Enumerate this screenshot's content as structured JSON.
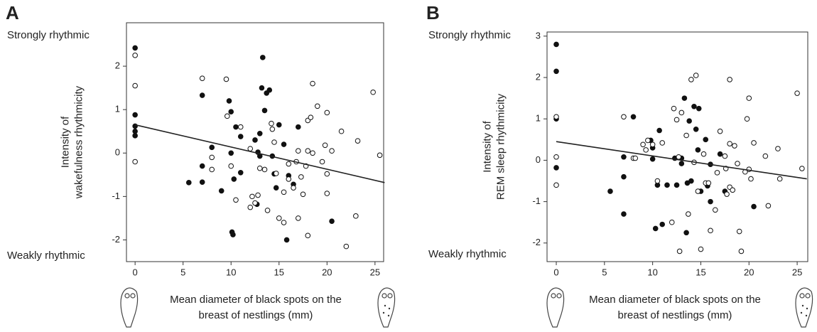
{
  "chart_data": [
    {
      "type": "scatter",
      "panel_label": "A",
      "annotations": [
        "Strongly rhythmic",
        "Weakly rhythmic"
      ],
      "ylabel": [
        "Intensity of",
        "wakefulness rhythmicity"
      ],
      "xlabel": [
        "Mean diameter of black spots on the",
        "breast of nestlings (mm)"
      ],
      "xlim": [
        -0.9,
        25.9
      ],
      "xticks": [
        0,
        5,
        10,
        15,
        20,
        25
      ],
      "ylim": [
        -2.5,
        3.0
      ],
      "yticks": [
        -2,
        -1,
        0,
        1,
        2
      ],
      "series": [
        {
          "marker": "filled",
          "color": "#111111",
          "x": [
            0,
            0,
            0,
            0,
            0,
            5.6,
            7,
            7,
            7,
            8,
            9,
            9.8,
            10,
            10,
            10.1,
            10.2,
            10.3,
            10.5,
            11,
            11,
            12.5,
            12.7,
            13,
            13.2,
            13.3,
            13.5,
            13.7,
            14,
            14.3,
            14.5,
            14.7,
            15,
            15.8,
            16,
            16.5,
            17,
            15.5,
            20.5,
            13,
            12.8
          ],
          "values": [
            2.42,
            0.88,
            0.62,
            0.5,
            0.4,
            -0.68,
            1.33,
            -0.3,
            -0.67,
            0.13,
            -0.87,
            1.2,
            0.95,
            0,
            -1.82,
            -1.88,
            -0.6,
            0.6,
            0.38,
            -0.45,
            0.3,
            -1.18,
            -0.07,
            1.5,
            2.2,
            0.98,
            1.38,
            1.45,
            -0.07,
            -0.48,
            -0.8,
            0.65,
            -2.0,
            -0.52,
            -0.72,
            0.6,
            0.2,
            -1.57,
            0.45,
            0.02
          ]
        },
        {
          "marker": "open",
          "color": "#111111",
          "x": [
            0,
            0,
            0,
            7,
            8,
            8,
            9.5,
            9.6,
            10,
            10.5,
            11,
            12,
            12,
            12.2,
            12.5,
            12.8,
            13,
            13.5,
            13.8,
            14.2,
            14.3,
            14.5,
            14.7,
            15,
            15.5,
            15.5,
            16,
            16,
            16.5,
            17,
            17,
            17.5,
            17.8,
            18,
            18,
            18.3,
            18,
            18.5,
            18.5,
            19,
            19.5,
            19.8,
            20,
            20,
            20,
            20.5,
            21.5,
            22,
            23,
            23.2,
            24.8,
            25.5,
            16.8,
            17.3
          ],
          "values": [
            2.25,
            1.55,
            -0.2,
            1.72,
            -0.1,
            -0.38,
            1.7,
            0.85,
            -0.3,
            -1.08,
            0.6,
            0.1,
            -1.25,
            -1.0,
            -1.15,
            -0.97,
            -0.35,
            -0.38,
            -1.32,
            0.68,
            0.55,
            0.25,
            -0.47,
            -1.5,
            -0.9,
            -1.6,
            -0.25,
            -0.6,
            -0.8,
            -1.5,
            0.05,
            -0.95,
            -0.3,
            0.75,
            -1.9,
            0.82,
            0.05,
            0.0,
            1.6,
            1.08,
            -0.2,
            0.18,
            0.93,
            -0.48,
            -0.93,
            0.05,
            0.5,
            -2.15,
            -1.45,
            0.28,
            1.4,
            -0.05,
            -0.2,
            -0.55
          ]
        }
      ],
      "trend": {
        "x": [
          0,
          26
        ],
        "values": [
          0.65,
          -0.68
        ]
      }
    },
    {
      "type": "scatter",
      "panel_label": "B",
      "annotations": [
        "Strongly rhythmic",
        "Weakly rhythmic"
      ],
      "ylabel": [
        "Intensity of",
        "REM sleep rhythmicity"
      ],
      "xlabel": [
        "Mean diameter of black spots on the",
        "breast of nestlings (mm)"
      ],
      "xlim": [
        -0.96,
        26.1
      ],
      "xticks": [
        0,
        5,
        10,
        15,
        20,
        25
      ],
      "ylim": [
        -2.45,
        3.1
      ],
      "yticks": [
        -2,
        -1,
        0,
        1,
        2,
        3
      ],
      "series": [
        {
          "marker": "filled",
          "color": "#111111",
          "x": [
            0,
            0,
            0,
            0,
            5.6,
            7,
            7,
            7,
            8,
            9.8,
            10,
            10,
            10.3,
            10.5,
            10.7,
            11,
            11.5,
            12.3,
            12.5,
            13,
            13,
            13.3,
            13.5,
            13.6,
            14,
            14.3,
            14.5,
            14.8,
            14.7,
            15,
            15.5,
            15.7,
            16,
            16,
            17,
            17.5,
            20.5,
            13.8
          ],
          "values": [
            2.8,
            2.15,
            1.0,
            -0.18,
            -0.75,
            0.08,
            -0.4,
            -1.3,
            1.05,
            0.48,
            0.3,
            0.03,
            -1.65,
            -0.6,
            0.72,
            -1.55,
            -0.6,
            0.05,
            -0.6,
            -0.08,
            0.05,
            1.5,
            -1.75,
            -0.55,
            -0.5,
            1.3,
            0.75,
            1.25,
            0.25,
            -0.75,
            0.5,
            -0.62,
            -1.0,
            -0.1,
            0.15,
            -0.75,
            -1.12,
            0.95
          ]
        },
        {
          "marker": "open",
          "color": "#111111",
          "x": [
            0,
            0,
            0,
            7,
            8,
            8.2,
            9,
            9.5,
            10,
            10.5,
            11,
            12,
            12.2,
            12.5,
            12.7,
            12.8,
            13,
            13.5,
            13.7,
            14,
            14.3,
            14.5,
            14.7,
            15,
            15.3,
            15.5,
            15.8,
            16,
            16.5,
            17,
            17.5,
            17.6,
            18,
            18,
            18.3,
            18.5,
            18,
            18.8,
            19,
            19.2,
            19.6,
            19.8,
            20,
            20,
            20.2,
            20.5,
            21.7,
            22,
            23,
            23.2,
            25,
            25.5,
            17.7,
            16.7,
            9.3
          ],
          "values": [
            1.05,
            0.08,
            -0.6,
            1.05,
            0.05,
            0.05,
            0.38,
            0.48,
            0.38,
            -0.5,
            0.42,
            -1.5,
            1.25,
            0.98,
            0.08,
            -2.2,
            1.15,
            0.6,
            -1.3,
            1.95,
            -0.05,
            2.05,
            -0.75,
            -2.15,
            0.15,
            -0.55,
            -0.55,
            -1.7,
            -1.2,
            0.7,
            0.1,
            -0.2,
            1.95,
            -0.65,
            -0.72,
            0.35,
            0.4,
            -0.08,
            -1.72,
            -2.2,
            -0.28,
            1.0,
            1.5,
            -0.22,
            -0.45,
            0.42,
            0.1,
            -1.1,
            0.28,
            -0.45,
            1.62,
            -0.2,
            -0.82,
            -0.3,
            0.25
          ]
        }
      ],
      "trend": {
        "x": [
          0,
          26
        ],
        "values": [
          0.45,
          -0.45
        ]
      }
    }
  ]
}
